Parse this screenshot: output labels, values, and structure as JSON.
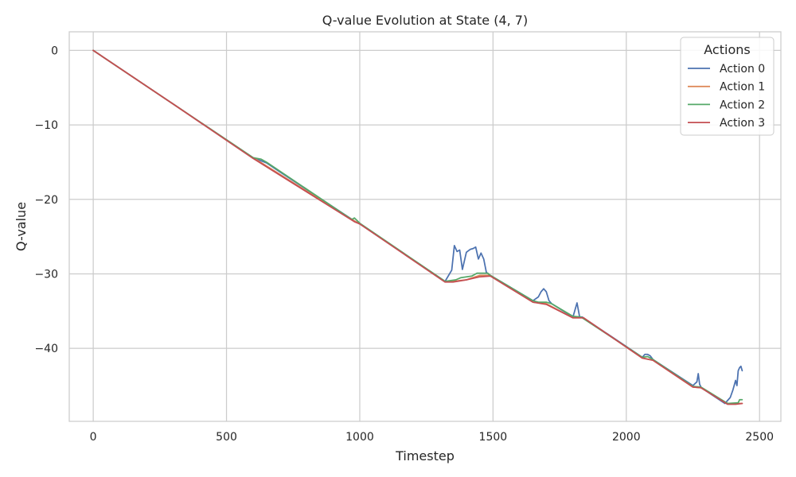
{
  "chart_data": {
    "type": "line",
    "title": "Q-value Evolution at State (4, 7)",
    "xlabel": "Timestep",
    "ylabel": "Q-value",
    "xlim": [
      -90,
      2580
    ],
    "ylim": [
      -49.8,
      2.5
    ],
    "x_ticks": [
      0,
      500,
      1000,
      1500,
      2000,
      2500
    ],
    "y_ticks": [
      0,
      -10,
      -20,
      -30,
      -40
    ],
    "grid": true,
    "legend": {
      "title": "Actions",
      "placement": "top-right"
    },
    "series": [
      {
        "name": "Action 0",
        "color": "#4c72b0",
        "x": [
          0,
          300,
          600,
          650,
          700,
          980,
          1000,
          1320,
          1345,
          1355,
          1365,
          1375,
          1385,
          1400,
          1415,
          1425,
          1435,
          1445,
          1455,
          1465,
          1475,
          1490,
          1650,
          1670,
          1680,
          1690,
          1700,
          1710,
          1720,
          1800,
          1815,
          1825,
          1835,
          2060,
          2070,
          2080,
          2090,
          2100,
          2250,
          2265,
          2270,
          2275,
          2280,
          2290,
          2370,
          2390,
          2400,
          2410,
          2415,
          2420,
          2425,
          2430,
          2435
        ],
        "y": [
          0,
          -7.2,
          -14.4,
          -15.1,
          -16.3,
          -22.9,
          -23.3,
          -31.0,
          -29.5,
          -26.2,
          -27.0,
          -26.8,
          -29.4,
          -27.1,
          -26.7,
          -26.6,
          -26.4,
          -28.0,
          -27.2,
          -28.0,
          -29.8,
          -30.2,
          -33.6,
          -33.1,
          -32.4,
          -32.0,
          -32.4,
          -33.6,
          -34.0,
          -35.8,
          -33.9,
          -35.8,
          -35.8,
          -41.2,
          -40.8,
          -40.8,
          -41.0,
          -41.5,
          -45.0,
          -44.5,
          -43.4,
          -44.8,
          -45.2,
          -45.5,
          -47.4,
          -46.6,
          -45.6,
          -44.3,
          -45.0,
          -43.0,
          -42.6,
          -42.4,
          -43.0
        ]
      },
      {
        "name": "Action 1",
        "color": "#dd8452",
        "x": [
          0,
          300,
          600,
          980,
          1000,
          1320,
          1350,
          1400,
          1450,
          1490,
          1650,
          1700,
          1800,
          1840,
          2060,
          2100,
          2250,
          2280,
          2380,
          2410,
          2435
        ],
        "y": [
          0,
          -7.2,
          -14.4,
          -22.9,
          -23.3,
          -31.0,
          -31.0,
          -30.8,
          -30.2,
          -30.2,
          -33.8,
          -34.0,
          -35.9,
          -35.9,
          -41.3,
          -41.6,
          -45.2,
          -45.3,
          -47.4,
          -47.4,
          -47.4
        ]
      },
      {
        "name": "Action 2",
        "color": "#55a868",
        "x": [
          0,
          300,
          600,
          630,
          650,
          700,
          970,
          980,
          1000,
          1320,
          1360,
          1380,
          1420,
          1440,
          1480,
          1490,
          1650,
          1670,
          1700,
          1720,
          1800,
          1830,
          2060,
          2080,
          2100,
          2250,
          2280,
          2380,
          2420,
          2425,
          2435
        ],
        "y": [
          0,
          -7.2,
          -14.4,
          -14.6,
          -15.0,
          -16.2,
          -22.7,
          -22.5,
          -23.2,
          -31.0,
          -30.8,
          -30.5,
          -30.3,
          -29.9,
          -29.9,
          -30.2,
          -33.6,
          -33.8,
          -33.8,
          -34.0,
          -35.7,
          -35.8,
          -41.2,
          -41.1,
          -41.5,
          -45.1,
          -45.2,
          -47.4,
          -47.3,
          -46.9,
          -46.9
        ]
      },
      {
        "name": "Action 3",
        "color": "#c44e52",
        "x": [
          0,
          300,
          600,
          980,
          1000,
          1320,
          1350,
          1400,
          1450,
          1490,
          1650,
          1700,
          1800,
          1840,
          2060,
          2100,
          2250,
          2280,
          2380,
          2410,
          2435
        ],
        "y": [
          0,
          -7.2,
          -14.5,
          -23.0,
          -23.3,
          -31.1,
          -31.1,
          -30.8,
          -30.4,
          -30.3,
          -33.8,
          -34.1,
          -35.9,
          -35.9,
          -41.3,
          -41.6,
          -45.2,
          -45.3,
          -47.5,
          -47.5,
          -47.4
        ]
      }
    ]
  }
}
